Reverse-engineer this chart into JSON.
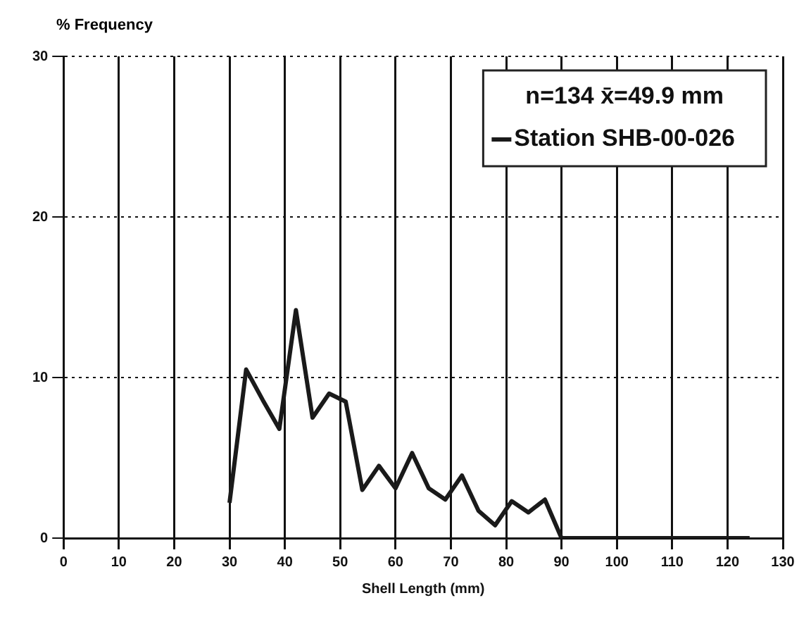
{
  "chart_data": {
    "type": "line",
    "xlabel": "Shell Length (mm)",
    "ylabel": "% Frequency",
    "annotations": [
      "n=134 x̄=49.9 mm"
    ],
    "series": [
      {
        "name": "Station SHB-00-026",
        "color": "#1a1a1a",
        "x": [
          30,
          33,
          36,
          39,
          42,
          45,
          48,
          51,
          54,
          57,
          60,
          63,
          66,
          69,
          72,
          75,
          78,
          81,
          84,
          87,
          90,
          124
        ],
        "values": [
          2.2,
          10.5,
          8.6,
          6.8,
          14.2,
          7.5,
          9.0,
          8.5,
          3.0,
          4.5,
          3.1,
          5.3,
          3.1,
          2.4,
          3.9,
          1.7,
          0.8,
          2.3,
          1.6,
          2.4,
          0,
          0
        ]
      }
    ],
    "xlim": [
      0,
      130
    ],
    "xticks": [
      0,
      10,
      20,
      30,
      40,
      50,
      60,
      70,
      80,
      90,
      100,
      110,
      120,
      130
    ],
    "ylim": [
      0,
      30
    ],
    "yticks": [
      0,
      10,
      20,
      30
    ],
    "grid": true,
    "legend": "top right",
    "marker": "none",
    "line_style": "solid"
  }
}
